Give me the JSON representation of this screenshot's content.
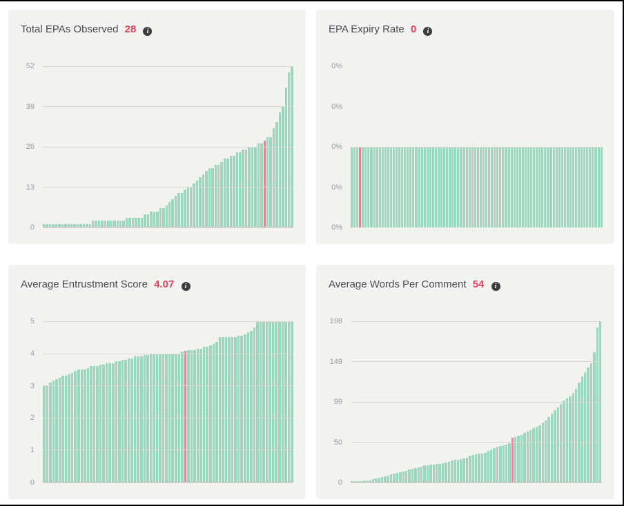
{
  "colors": {
    "page_background": "#ffffff",
    "frame_border": "#000000",
    "panel_background": "#f2f2f1",
    "title_color": "#4a4a4a",
    "headline_value_color": "#e04258",
    "bar_color": "#9cd6bf",
    "highlight_bar_color": "#ee8093",
    "tick_label_color": "#9b9b9b",
    "gridline_color": "#d8d8d6",
    "axis_line_color": "#b0b0ae",
    "info_icon_background": "#3d3d3d"
  },
  "icons": {
    "info_glyph": "i",
    "info_name": "info-circle-icon"
  },
  "chart_data": [
    {
      "type": "bar",
      "title": "Total EPAs Observed",
      "headline_value": "28",
      "y_ticks": [
        "52",
        "39",
        "26",
        "13",
        "0"
      ],
      "ylim": [
        0,
        52
      ],
      "y_max": 52,
      "grid": "all",
      "baseline": true,
      "legend": "none",
      "highlight_index": 72,
      "highlight_value": 28,
      "values": [
        1,
        1,
        1,
        1,
        1,
        1,
        1,
        1,
        1,
        1,
        1,
        1,
        1,
        1,
        1,
        1,
        2,
        2,
        2,
        2,
        2,
        2,
        2,
        2,
        2,
        2,
        2,
        3,
        3,
        3,
        3,
        3,
        3,
        4,
        4,
        5,
        5,
        5,
        6,
        6,
        7,
        8,
        9,
        10,
        11,
        11,
        12,
        13,
        13,
        14,
        15,
        16,
        17,
        18,
        19,
        19,
        20,
        20,
        21,
        22,
        22,
        23,
        23,
        24,
        24,
        25,
        25,
        26,
        26,
        26,
        27,
        27,
        28,
        29,
        29,
        32,
        34,
        37,
        39,
        45,
        50,
        52
      ]
    },
    {
      "type": "bar",
      "title": "EPA Expiry Rate",
      "headline_value": "0",
      "y_ticks": [
        "0%",
        "0%",
        "0%",
        "0%",
        "0%"
      ],
      "ylim": [
        0,
        0
      ],
      "y_max": 0,
      "grid": "middle-only",
      "baseline": false,
      "legend": "none",
      "highlight_index": 3,
      "highlight_value": 0,
      "values": [
        0,
        0,
        0,
        0,
        0,
        0,
        0,
        0,
        0,
        0,
        0,
        0,
        0,
        0,
        0,
        0,
        0,
        0,
        0,
        0,
        0,
        0,
        0,
        0,
        0,
        0,
        0,
        0,
        0,
        0,
        0,
        0,
        0,
        0,
        0,
        0,
        0,
        0,
        0,
        0,
        0,
        0,
        0,
        0,
        0,
        0,
        0,
        0,
        0,
        0,
        0,
        0,
        0,
        0,
        0,
        0,
        0,
        0,
        0,
        0,
        0,
        0,
        0,
        0,
        0,
        0,
        0,
        0,
        0,
        0,
        0,
        0,
        0,
        0,
        0,
        0,
        0,
        0,
        0,
        0,
        0,
        0,
        0,
        0,
        0,
        0,
        0,
        0,
        0,
        0
      ]
    },
    {
      "type": "bar",
      "title": "Average Entrustment Score",
      "headline_value": "4.07",
      "y_ticks": [
        "5",
        "4",
        "3",
        "2",
        "1",
        "0"
      ],
      "ylim": [
        0,
        5
      ],
      "y_max": 5,
      "grid": "all",
      "baseline": true,
      "legend": "none",
      "highlight_index": 45,
      "highlight_value": 4.07,
      "values": [
        3,
        3,
        3.1,
        3.15,
        3.2,
        3.25,
        3.3,
        3.3,
        3.35,
        3.4,
        3.45,
        3.5,
        3.5,
        3.5,
        3.55,
        3.6,
        3.6,
        3.6,
        3.65,
        3.65,
        3.7,
        3.7,
        3.7,
        3.75,
        3.75,
        3.8,
        3.8,
        3.85,
        3.85,
        3.9,
        3.9,
        3.9,
        3.95,
        3.95,
        4,
        4,
        4,
        4,
        4,
        4,
        4,
        4,
        4,
        4,
        4.05,
        4.07,
        4.1,
        4.1,
        4.1,
        4.15,
        4.15,
        4.2,
        4.2,
        4.25,
        4.3,
        4.35,
        4.5,
        4.5,
        4.5,
        4.5,
        4.5,
        4.5,
        4.55,
        4.55,
        4.6,
        4.65,
        4.7,
        4.8,
        5,
        5,
        5,
        5,
        5,
        5,
        5,
        5,
        5,
        5,
        5,
        5
      ]
    },
    {
      "type": "bar",
      "title": "Average Words Per Comment",
      "headline_value": "54",
      "y_ticks": [
        "198",
        "149",
        "99",
        "50",
        "0"
      ],
      "ylim": [
        0,
        198
      ],
      "y_max": 198,
      "grid": "all",
      "baseline": true,
      "legend": "none",
      "highlight_index": 53,
      "highlight_value": 54,
      "values": [
        1,
        1,
        1,
        1,
        2,
        2,
        2,
        3,
        4,
        5,
        6,
        7,
        8,
        9,
        10,
        11,
        12,
        13,
        14,
        15,
        16,
        17,
        18,
        19,
        20,
        20,
        21,
        21,
        22,
        22,
        23,
        24,
        25,
        26,
        27,
        27,
        28,
        29,
        30,
        32,
        33,
        34,
        35,
        35,
        36,
        38,
        40,
        42,
        43,
        44,
        45,
        46,
        48,
        54,
        55,
        57,
        58,
        60,
        62,
        64,
        66,
        68,
        70,
        73,
        76,
        80,
        84,
        88,
        92,
        96,
        100,
        103,
        105,
        110,
        115,
        122,
        130,
        135,
        141,
        146,
        160,
        190,
        198
      ]
    }
  ]
}
